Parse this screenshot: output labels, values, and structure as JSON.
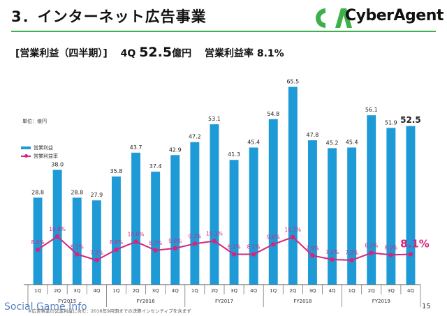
{
  "header": {
    "title": "3．インターネット広告事業",
    "logo_text": "CyberAgent",
    "logo_mark": "CA",
    "accent_color": "#3db04b"
  },
  "subtitle": {
    "segment": "[営業利益（四半期）]",
    "quarter": "4Q",
    "profit_value": "52.5",
    "profit_unit": "億円",
    "margin_label": "営業利益率",
    "margin_value": "8.1",
    "margin_unit": "%"
  },
  "unit_label": "単位：億円",
  "legend": {
    "bar_label": "営業利益",
    "line_label": "営業利益率",
    "bar_color": "#1e9bd7",
    "line_color": "#d6257a"
  },
  "chart_data": {
    "type": "bar",
    "categories": [
      "1Q",
      "2Q",
      "3Q",
      "4Q",
      "1Q",
      "2Q",
      "3Q",
      "4Q",
      "1Q",
      "2Q",
      "3Q",
      "4Q",
      "1Q",
      "2Q",
      "3Q",
      "4Q",
      "1Q",
      "2Q",
      "3Q",
      "4Q"
    ],
    "groups": [
      {
        "label": "FY2015",
        "count": 4
      },
      {
        "label": "FY2016",
        "count": 4
      },
      {
        "label": "FY2017",
        "count": 4
      },
      {
        "label": "FY2018",
        "count": 4
      },
      {
        "label": "FY2019",
        "count": 4
      }
    ],
    "series": [
      {
        "name": "営業利益",
        "type": "bar",
        "values": [
          28.8,
          38.0,
          28.8,
          27.9,
          35.8,
          43.7,
          37.4,
          42.9,
          47.2,
          53.1,
          41.3,
          45.4,
          54.8,
          65.5,
          47.8,
          45.2,
          45.4,
          56.1,
          51.9,
          52.5
        ]
      },
      {
        "name": "営業利益率",
        "type": "line",
        "values": [
          8.8,
          10.8,
          8.1,
          7.2,
          8.8,
          10.0,
          8.7,
          9.0,
          9.7,
          10.1,
          8.1,
          8.1,
          9.6,
          10.7,
          7.9,
          7.3,
          7.2,
          8.3,
          8.0,
          8.1
        ],
        "labels": [
          "8.8%",
          "10.8%",
          "8.1%",
          "7.2%",
          "8.8%",
          "10.0%",
          "8.7%",
          "9.0%",
          "9.7%",
          "10.1%",
          "8.1%",
          "8.1%",
          "9.6%",
          "10.7%",
          "7.9%",
          "7.3%",
          "7.2%",
          "8.3%",
          "8.0%",
          "8.1%"
        ]
      }
    ],
    "bar_labels": [
      "28.8",
      "38.0",
      "28.8",
      "27.9",
      "35.8",
      "43.7",
      "37.4",
      "42.9",
      "47.2",
      "53.1",
      "41.3",
      "45.4",
      "54.8",
      "65.5",
      "47.8",
      "45.2",
      "45.4",
      "56.1",
      "51.9",
      "52.5"
    ],
    "highlight_index": 19,
    "ylim": [
      0,
      67
    ],
    "margin_ylim": [
      0,
      26
    ]
  },
  "footnote": "※広告事業の営業利益に含む：2016年9月期までの決算インセンティブを含まず",
  "page_number": "15",
  "watermark": "Social Game Info"
}
